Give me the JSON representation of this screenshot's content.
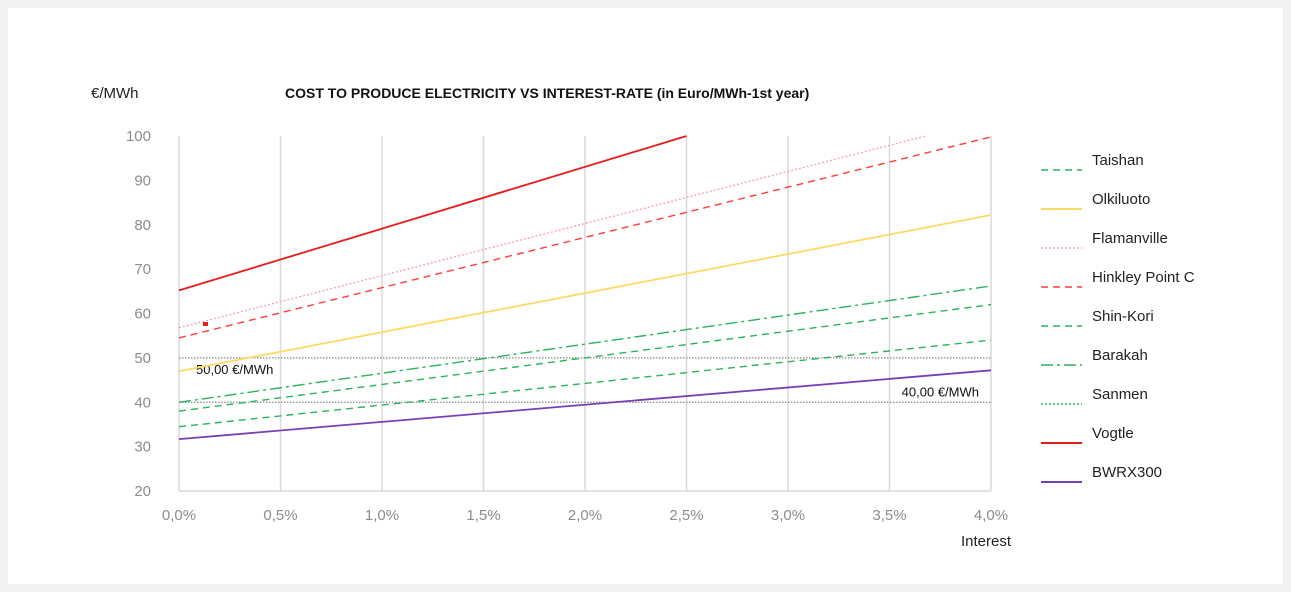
{
  "chart_data": {
    "type": "line",
    "title": "COST TO PRODUCE ELECTRICITY VS INTEREST-RATE (in Euro/MWh-1st year)",
    "ylabel": "€/MWh",
    "xlabel": "Interest",
    "ylim": [
      20,
      100
    ],
    "xlim": [
      0,
      0.04
    ],
    "yticks": [
      "20",
      "30",
      "40",
      "50",
      "60",
      "70",
      "80",
      "90",
      "100"
    ],
    "xticks": [
      "0,0%",
      "0,5%",
      "1,0%",
      "1,5%",
      "2,0%",
      "2,5%",
      "3,0%",
      "3,5%",
      "4,0%"
    ],
    "grid": "vertical",
    "legend_position": "right",
    "reference_lines": [
      {
        "y": 50,
        "label": "50,00 €/MWh",
        "color": "#8a8a8a"
      },
      {
        "y": 40,
        "label": "40,00 €/MWh",
        "color": "#8a8a8a"
      }
    ],
    "series": [
      {
        "name": "Taishan",
        "color": "#2ab35a",
        "dash": "dashed",
        "x": [
          0,
          0.04
        ],
        "y": [
          34.5,
          54
        ]
      },
      {
        "name": "Olkiluoto",
        "color": "#ffd966",
        "dash": "solid",
        "x": [
          0,
          0.04
        ],
        "y": [
          47,
          82.2
        ]
      },
      {
        "name": "Flamanville",
        "color": "#f4a6b6",
        "dash": "dotted",
        "x": [
          0,
          0.0368
        ],
        "y": [
          56.8,
          100
        ]
      },
      {
        "name": "Hinkley Point C",
        "color": "#ff3b3b",
        "dash": "dashed",
        "x": [
          0,
          0.04
        ],
        "y": [
          54.5,
          99.8
        ]
      },
      {
        "name": "Shin-Kori",
        "color": "#2ab35a",
        "dash": "dashed",
        "x": [
          0,
          0.04
        ],
        "y": [
          38,
          62
        ]
      },
      {
        "name": "Barakah",
        "color": "#2ab35a",
        "dash": "dashdot",
        "x": [
          0,
          0.04
        ],
        "y": [
          40,
          66.2
        ]
      },
      {
        "name": "Sanmen",
        "color": "#2ab35a",
        "dash": "dotted",
        "x": [],
        "y": []
      },
      {
        "name": "Vogtle",
        "color": "#e51c1c",
        "dash": "solid",
        "x": [
          0,
          0.025
        ],
        "y": [
          65.2,
          100
        ]
      },
      {
        "name": "BWRX300",
        "color": "#7a3fb5",
        "dash": "solid",
        "x": [
          0,
          0.04
        ],
        "y": [
          31.7,
          47.2
        ]
      }
    ]
  }
}
